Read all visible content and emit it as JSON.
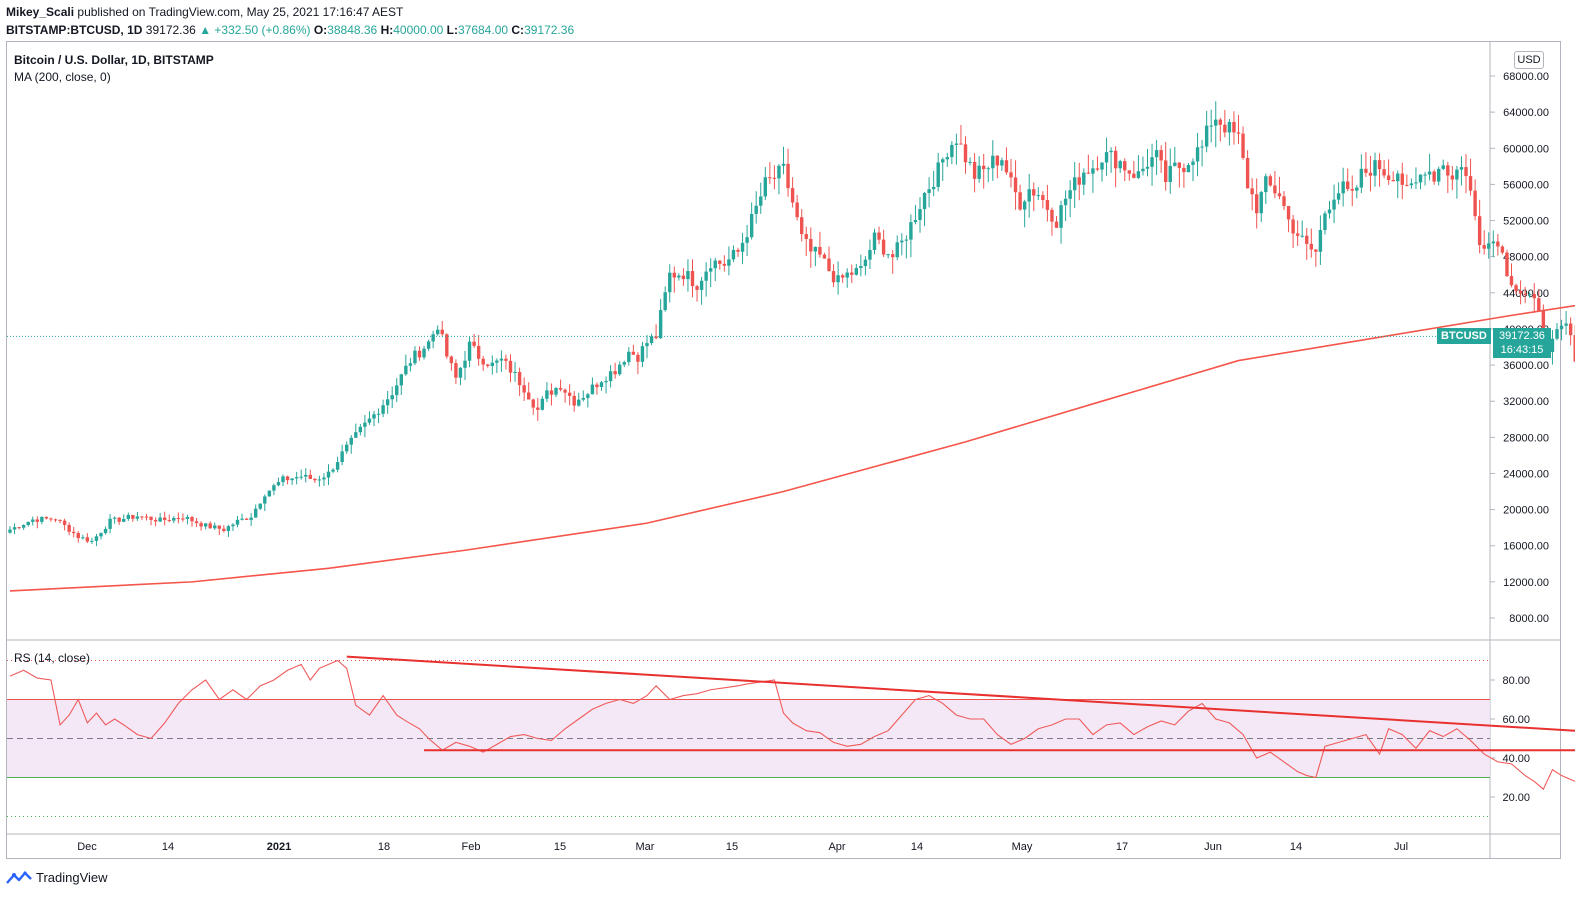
{
  "header": {
    "publisher": "Mikey_Scali",
    "published_text": "published on TradingView.com, May 25, 2021 17:16:47 AEST",
    "symbol": "BITSTAMP:BTCUSD, 1D",
    "last": "39172.36",
    "change": "▲ +332.50 (+0.86%)",
    "open_label": "O:",
    "open": "38848.36",
    "high_label": "H:",
    "high": "40000.00",
    "low_label": "L:",
    "low": "37684.00",
    "close_label": "C:",
    "close": "39172.36"
  },
  "legend": {
    "title": "Bitcoin / U.S. Dollar, 1D, BITSTAMP",
    "ma": "MA (200, close, 0)",
    "rs": "RS (14, close)"
  },
  "price_scale": {
    "currency": "USD",
    "symbol_tag": "BTCUSD",
    "price_tag": "39172.36",
    "countdown": "16:43:15"
  },
  "footer": {
    "brand": "TradingView"
  },
  "colors": {
    "up": "#26a69a",
    "down": "#ef5350",
    "ma": "#f5554a",
    "rsi": "#f05a5a",
    "trend": "#e8312e",
    "band": "#f3e5f5"
  },
  "chart_data": [
    {
      "type": "candlestick",
      "title": "Bitcoin / U.S. Dollar, 1D, BITSTAMP",
      "ylim": [
        5000,
        70000
      ],
      "y_ticks": [
        "68000.00",
        "64000.00",
        "60000.00",
        "56000.00",
        "52000.00",
        "48000.00",
        "44000.00",
        "40000.00",
        "36000.00",
        "32000.00",
        "28000.00",
        "24000.00",
        "20000.00",
        "16000.00",
        "12000.00",
        "8000.00"
      ],
      "x_ticks": [
        "Dec",
        "14",
        "2021",
        "18",
        "Feb",
        "15",
        "Mar",
        "15",
        "Apr",
        "14",
        "May",
        "17",
        "Jun",
        "14",
        "Jul"
      ],
      "start_date": "2020-11-18",
      "close_path": [
        [
          0,
          17800
        ],
        [
          5,
          18900
        ],
        [
          10,
          19000
        ],
        [
          15,
          17000
        ],
        [
          18,
          16500
        ],
        [
          22,
          18700
        ],
        [
          28,
          19300
        ],
        [
          33,
          18800
        ],
        [
          38,
          19200
        ],
        [
          43,
          18200
        ],
        [
          47,
          17800
        ],
        [
          50,
          18700
        ],
        [
          53,
          19300
        ],
        [
          56,
          21800
        ],
        [
          60,
          23300
        ],
        [
          64,
          23700
        ],
        [
          67,
          23300
        ],
        [
          70,
          24000
        ],
        [
          73,
          26200
        ],
        [
          77,
          28800
        ],
        [
          80,
          30500
        ],
        [
          84,
          33000
        ],
        [
          88,
          36500
        ],
        [
          92,
          38500
        ],
        [
          94,
          40500
        ],
        [
          96,
          37000
        ],
        [
          98,
          34500
        ],
        [
          101,
          38200
        ],
        [
          103,
          37000
        ],
        [
          106,
          36000
        ],
        [
          108,
          36500
        ],
        [
          110,
          35500
        ],
        [
          113,
          33500
        ],
        [
          116,
          31000
        ],
        [
          118,
          32800
        ],
        [
          121,
          33800
        ],
        [
          124,
          32000
        ],
        [
          127,
          33000
        ],
        [
          130,
          34500
        ],
        [
          133,
          35500
        ],
        [
          136,
          37500
        ],
        [
          138,
          37000
        ],
        [
          140,
          38500
        ],
        [
          142,
          39200
        ],
        [
          145,
          46000
        ],
        [
          148,
          46200
        ],
        [
          151,
          45000
        ],
        [
          154,
          47500
        ],
        [
          157,
          47200
        ],
        [
          160,
          48500
        ],
        [
          163,
          52000
        ],
        [
          166,
          56000
        ],
        [
          170,
          57500
        ],
        [
          172,
          54000
        ],
        [
          174,
          50000
        ],
        [
          176,
          48500
        ],
        [
          178,
          48000
        ],
        [
          180,
          46500
        ],
        [
          182,
          45200
        ],
        [
          184,
          46000
        ],
        [
          187,
          46500
        ],
        [
          190,
          50000
        ],
        [
          192,
          49000
        ],
        [
          194,
          48000
        ],
        [
          196,
          49500
        ],
        [
          198,
          51500
        ],
        [
          201,
          55000
        ],
        [
          204,
          57500
        ],
        [
          206,
          60000
        ],
        [
          208,
          61200
        ],
        [
          210,
          59000
        ],
        [
          212,
          57000
        ],
        [
          214,
          57500
        ],
        [
          216,
          58500
        ],
        [
          218,
          59000
        ],
        [
          220,
          56000
        ],
        [
          222,
          54000
        ],
        [
          224,
          55500
        ],
        [
          226,
          55000
        ],
        [
          228,
          53500
        ],
        [
          230,
          52000
        ],
        [
          232,
          54500
        ],
        [
          234,
          56000
        ],
        [
          236,
          57500
        ],
        [
          238,
          58000
        ],
        [
          240,
          59200
        ],
        [
          242,
          59000
        ],
        [
          244,
          58500
        ],
        [
          246,
          57500
        ],
        [
          248,
          57000
        ],
        [
          250,
          58500
        ],
        [
          252,
          59000
        ],
        [
          254,
          56500
        ],
        [
          256,
          57800
        ],
        [
          258,
          58200
        ],
        [
          260,
          59300
        ],
        [
          262,
          60000
        ],
        [
          264,
          63000
        ],
        [
          265,
          63500
        ],
        [
          267,
          62500
        ],
        [
          270,
          61000
        ],
        [
          272,
          56000
        ],
        [
          274,
          53500
        ],
        [
          276,
          56000
        ],
        [
          279,
          55000
        ],
        [
          281,
          52000
        ],
        [
          283,
          50500
        ],
        [
          285,
          49000
        ],
        [
          287,
          48500
        ],
        [
          289,
          53000
        ],
        [
          291,
          55000
        ],
        [
          293,
          55500
        ],
        [
          295,
          54500
        ],
        [
          297,
          57000
        ],
        [
          299,
          57800
        ],
        [
          301,
          58000
        ],
        [
          303,
          57000
        ],
        [
          305,
          57500
        ],
        [
          307,
          55000
        ],
        [
          309,
          56000
        ],
        [
          311,
          58000
        ],
        [
          313,
          57000
        ],
        [
          315,
          58500
        ],
        [
          317,
          56500
        ],
        [
          319,
          58500
        ],
        [
          321,
          55000
        ],
        [
          323,
          50000
        ],
        [
          325,
          49500
        ],
        [
          327,
          50000
        ],
        [
          329,
          46500
        ],
        [
          331,
          44500
        ],
        [
          333,
          43500
        ],
        [
          336,
          42500
        ],
        [
          338,
          37000
        ],
        [
          340,
          39500
        ],
        [
          342,
          40500
        ],
        [
          344,
          37000
        ],
        [
          346,
          36500
        ],
        [
          348,
          34500
        ],
        [
          350,
          37000
        ],
        [
          352,
          39172
        ]
      ],
      "last_bar": {
        "open": 38848.36,
        "high": 40000.0,
        "low": 37684.0,
        "close": 39172.36
      },
      "ma_label": "MA (200, close, 0)",
      "ma_path": [
        [
          0,
          11000
        ],
        [
          40,
          12000
        ],
        [
          70,
          13500
        ],
        [
          100,
          15500
        ],
        [
          140,
          18500
        ],
        [
          170,
          22000
        ],
        [
          210,
          27500
        ],
        [
          240,
          32000
        ],
        [
          270,
          36500
        ],
        [
          300,
          39000
        ],
        [
          330,
          41500
        ],
        [
          352,
          43200
        ]
      ]
    },
    {
      "type": "line",
      "title": "RS (14, close)",
      "ylim": [
        0,
        100
      ],
      "y_ticks": [
        "80.00",
        "60.00",
        "40.00",
        "20.00"
      ],
      "band": [
        30,
        70
      ],
      "midline": 50,
      "upper_line": 90,
      "lower_line": 10,
      "rsi_path": [
        [
          0,
          82
        ],
        [
          3,
          85
        ],
        [
          6,
          81
        ],
        [
          9,
          80
        ],
        [
          11,
          57
        ],
        [
          13,
          62
        ],
        [
          15,
          70
        ],
        [
          17,
          58
        ],
        [
          19,
          63
        ],
        [
          21,
          57
        ],
        [
          23,
          60
        ],
        [
          25,
          57
        ],
        [
          28,
          52
        ],
        [
          31,
          50
        ],
        [
          34,
          58
        ],
        [
          37,
          68
        ],
        [
          40,
          75
        ],
        [
          43,
          80
        ],
        [
          46,
          70
        ],
        [
          49,
          75
        ],
        [
          52,
          70
        ],
        [
          55,
          77
        ],
        [
          58,
          80
        ],
        [
          61,
          85
        ],
        [
          64,
          88
        ],
        [
          66,
          80
        ],
        [
          68,
          86
        ],
        [
          70,
          88
        ],
        [
          72,
          90
        ],
        [
          74,
          86
        ],
        [
          76,
          67
        ],
        [
          79,
          62
        ],
        [
          82,
          72
        ],
        [
          85,
          62
        ],
        [
          87,
          59
        ],
        [
          90,
          55
        ],
        [
          92,
          50
        ],
        [
          95,
          44
        ],
        [
          98,
          48
        ],
        [
          101,
          46
        ],
        [
          104,
          43
        ],
        [
          107,
          47
        ],
        [
          110,
          51
        ],
        [
          113,
          52
        ],
        [
          116,
          50
        ],
        [
          119,
          49
        ],
        [
          122,
          55
        ],
        [
          125,
          60
        ],
        [
          128,
          65
        ],
        [
          131,
          68
        ],
        [
          134,
          70
        ],
        [
          137,
          68
        ],
        [
          140,
          72
        ],
        [
          142,
          77
        ],
        [
          145,
          70
        ],
        [
          148,
          72
        ],
        [
          151,
          73
        ],
        [
          154,
          75
        ],
        [
          157,
          76
        ],
        [
          160,
          77
        ],
        [
          162,
          78
        ],
        [
          165,
          79
        ],
        [
          168,
          80
        ],
        [
          170,
          63
        ],
        [
          172,
          58
        ],
        [
          175,
          54
        ],
        [
          178,
          53
        ],
        [
          181,
          48
        ],
        [
          184,
          46
        ],
        [
          187,
          47
        ],
        [
          190,
          51
        ],
        [
          193,
          54
        ],
        [
          196,
          62
        ],
        [
          199,
          70
        ],
        [
          202,
          72
        ],
        [
          205,
          68
        ],
        [
          208,
          62
        ],
        [
          211,
          60
        ],
        [
          214,
          60
        ],
        [
          217,
          52
        ],
        [
          220,
          47
        ],
        [
          223,
          50
        ],
        [
          226,
          55
        ],
        [
          229,
          57
        ],
        [
          232,
          60
        ],
        [
          235,
          60
        ],
        [
          238,
          52
        ],
        [
          241,
          57
        ],
        [
          244,
          58
        ],
        [
          247,
          52
        ],
        [
          250,
          56
        ],
        [
          253,
          59
        ],
        [
          256,
          57
        ],
        [
          259,
          64
        ],
        [
          262,
          68
        ],
        [
          265,
          60
        ],
        [
          268,
          58
        ],
        [
          271,
          52
        ],
        [
          274,
          40
        ],
        [
          277,
          43
        ],
        [
          280,
          38
        ],
        [
          283,
          33
        ],
        [
          285,
          31
        ],
        [
          287,
          30
        ],
        [
          289,
          46
        ],
        [
          292,
          48
        ],
        [
          295,
          50
        ],
        [
          298,
          52
        ],
        [
          301,
          42
        ],
        [
          303,
          55
        ],
        [
          306,
          52
        ],
        [
          309,
          45
        ],
        [
          312,
          54
        ],
        [
          315,
          51
        ],
        [
          318,
          55
        ],
        [
          321,
          49
        ],
        [
          324,
          42
        ],
        [
          327,
          38
        ],
        [
          330,
          37
        ],
        [
          333,
          31
        ],
        [
          335,
          28
        ],
        [
          337,
          24
        ],
        [
          339,
          34
        ],
        [
          341,
          31
        ],
        [
          343,
          29
        ],
        [
          345,
          27
        ],
        [
          347,
          35
        ],
        [
          349,
          37
        ]
      ],
      "trend_lines": [
        {
          "from": [
            74,
            92
          ],
          "to": [
            358,
            52
          ]
        },
        {
          "from": [
            91,
            44
          ],
          "to": [
            358,
            44
          ]
        }
      ]
    }
  ]
}
